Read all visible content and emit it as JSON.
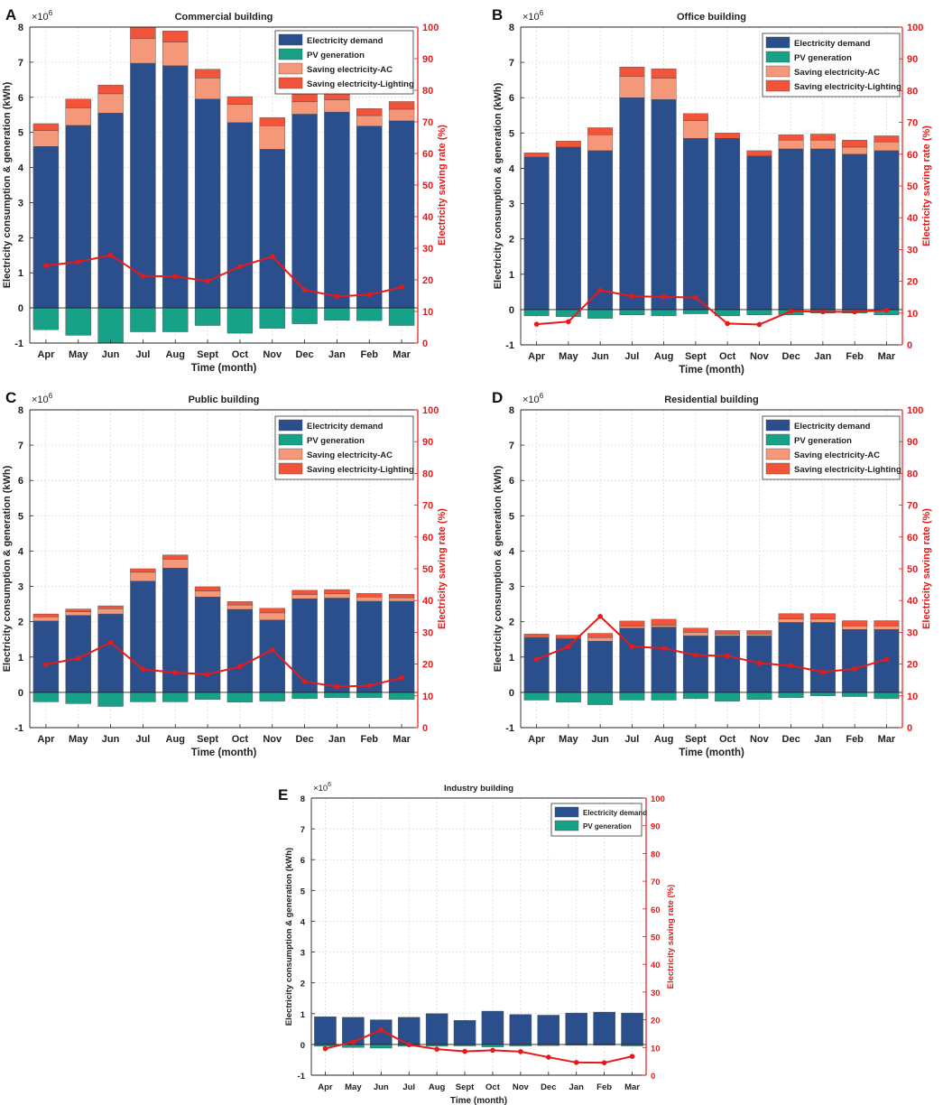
{
  "figure": {
    "months": [
      "Apr",
      "May",
      "Jun",
      "Jul",
      "Aug",
      "Sept",
      "Oct",
      "Nov",
      "Dec",
      "Jan",
      "Feb",
      "Mar"
    ],
    "xlabel": "Time (month)",
    "ylabel_left": "Electricity consumption & generation (kWh)",
    "ylabel_right": "Electricity saving rate (%)",
    "exponent_base": "×10",
    "exponent_power": "6",
    "colors": {
      "demand": "#2b4f8c",
      "pv": "#17a187",
      "ac": "#f5987a",
      "lighting": "#f2543a",
      "rate": "#e81919",
      "grid": "#d8d8d8"
    }
  },
  "chart_data": [
    {
      "panel": "A",
      "type": "bar",
      "title": "Commercial building",
      "ylim": [
        -1,
        8
      ],
      "y2lim": [
        0,
        100
      ],
      "legend": [
        "Electricity demand",
        "PV generation",
        "Saving electricity-AC",
        "Saving electricity-Lighting"
      ],
      "series": [
        {
          "name": "Electricity demand",
          "values": [
            4.6,
            5.2,
            5.55,
            6.97,
            6.9,
            5.95,
            5.28,
            4.52,
            5.52,
            5.58,
            5.18,
            5.33
          ]
        },
        {
          "name": "PV generation",
          "values": [
            -0.62,
            -0.78,
            -1.0,
            -0.68,
            -0.68,
            -0.5,
            -0.72,
            -0.58,
            -0.45,
            -0.35,
            -0.36,
            -0.5
          ]
        },
        {
          "name": "Saving electricity-AC",
          "values": [
            0.45,
            0.5,
            0.55,
            0.7,
            0.67,
            0.6,
            0.52,
            0.67,
            0.35,
            0.35,
            0.3,
            0.33
          ]
        },
        {
          "name": "Saving electricity-Lighting",
          "values": [
            0.2,
            0.25,
            0.25,
            0.33,
            0.32,
            0.25,
            0.22,
            0.23,
            0.22,
            0.22,
            0.2,
            0.22
          ]
        },
        {
          "name": "Electricity saving rate",
          "values": [
            24.5,
            25.7,
            27.8,
            21.2,
            21.1,
            19.6,
            24.2,
            27.4,
            16.8,
            14.8,
            15.3,
            17.7
          ]
        }
      ]
    },
    {
      "panel": "B",
      "type": "bar",
      "title": "Office building",
      "ylim": [
        -1,
        8
      ],
      "y2lim": [
        0,
        100
      ],
      "legend": [
        "Electricity demand",
        "PV generation",
        "Saving electricity-AC",
        "Saving electricity-Lighting"
      ],
      "series": [
        {
          "name": "Electricity demand",
          "values": [
            4.32,
            4.6,
            4.5,
            6.0,
            5.95,
            4.85,
            4.85,
            4.35,
            4.55,
            4.55,
            4.4,
            4.5
          ]
        },
        {
          "name": "PV generation",
          "values": [
            -0.18,
            -0.2,
            -0.25,
            -0.15,
            -0.18,
            -0.12,
            -0.18,
            -0.15,
            -0.15,
            -0.1,
            -0.1,
            -0.15
          ]
        },
        {
          "name": "Saving electricity-AC",
          "values": [
            0.0,
            0.0,
            0.45,
            0.6,
            0.6,
            0.5,
            0.0,
            0.0,
            0.25,
            0.25,
            0.2,
            0.25
          ]
        },
        {
          "name": "Saving electricity-Lighting",
          "values": [
            0.12,
            0.17,
            0.2,
            0.27,
            0.27,
            0.2,
            0.15,
            0.15,
            0.15,
            0.17,
            0.2,
            0.17
          ]
        },
        {
          "name": "Electricity saving rate",
          "values": [
            6.5,
            7.3,
            17.2,
            15.3,
            15.1,
            14.9,
            6.7,
            6.4,
            10.6,
            10.4,
            10.4,
            10.9
          ]
        }
      ]
    },
    {
      "panel": "C",
      "type": "bar",
      "title": "Public building",
      "ylim": [
        -1,
        8
      ],
      "y2lim": [
        0,
        100
      ],
      "legend": [
        "Electricity demand",
        "PV generation",
        "Saving electricity-AC",
        "Saving electricity-Lighting"
      ],
      "series": [
        {
          "name": "Electricity demand",
          "values": [
            2.02,
            2.18,
            2.22,
            3.15,
            3.52,
            2.7,
            2.35,
            2.05,
            2.65,
            2.67,
            2.58,
            2.58
          ]
        },
        {
          "name": "PV generation",
          "values": [
            -0.27,
            -0.32,
            -0.4,
            -0.27,
            -0.27,
            -0.2,
            -0.28,
            -0.25,
            -0.18,
            -0.15,
            -0.15,
            -0.2
          ]
        },
        {
          "name": "Saving electricity-AC",
          "values": [
            0.12,
            0.1,
            0.15,
            0.25,
            0.25,
            0.17,
            0.12,
            0.2,
            0.12,
            0.12,
            0.12,
            0.1
          ]
        },
        {
          "name": "Saving electricity-Lighting",
          "values": [
            0.08,
            0.08,
            0.08,
            0.1,
            0.12,
            0.12,
            0.1,
            0.13,
            0.12,
            0.12,
            0.1,
            0.1
          ]
        },
        {
          "name": "Electricity saving rate",
          "values": [
            19.9,
            21.8,
            26.8,
            18.4,
            17.3,
            16.8,
            19.2,
            24.5,
            14.5,
            12.9,
            13.2,
            15.7
          ]
        }
      ]
    },
    {
      "panel": "D",
      "type": "bar",
      "title": "Residential building",
      "ylim": [
        -1,
        8
      ],
      "y2lim": [
        0,
        100
      ],
      "legend": [
        "Electricity demand",
        "PV generation",
        "Saving electricity-AC",
        "Saving electricity-Lighting"
      ],
      "series": [
        {
          "name": "Electricity demand",
          "values": [
            1.55,
            1.52,
            1.45,
            1.82,
            1.85,
            1.6,
            1.6,
            1.6,
            1.98,
            1.98,
            1.78,
            1.78
          ]
        },
        {
          "name": "PV generation",
          "values": [
            -0.22,
            -0.28,
            -0.35,
            -0.22,
            -0.22,
            -0.18,
            -0.25,
            -0.2,
            -0.15,
            -0.1,
            -0.12,
            -0.18
          ]
        },
        {
          "name": "Saving electricity-AC",
          "values": [
            0.0,
            0.0,
            0.1,
            0.05,
            0.05,
            0.1,
            0.05,
            0.05,
            0.1,
            0.1,
            0.1,
            0.1
          ]
        },
        {
          "name": "Saving electricity-Lighting",
          "values": [
            0.1,
            0.1,
            0.12,
            0.15,
            0.17,
            0.12,
            0.1,
            0.1,
            0.15,
            0.15,
            0.15,
            0.15
          ]
        },
        {
          "name": "Electricity saving rate",
          "values": [
            21.5,
            25.5,
            35.0,
            25.5,
            25.0,
            22.8,
            22.6,
            20.3,
            19.5,
            17.5,
            18.5,
            21.5
          ]
        }
      ]
    },
    {
      "panel": "E",
      "type": "bar",
      "title": "Industry building",
      "ylim": [
        -1,
        8
      ],
      "y2lim": [
        0,
        100
      ],
      "legend": [
        "Electricity demand",
        "PV generation"
      ],
      "series": [
        {
          "name": "Electricity demand",
          "values": [
            0.9,
            0.88,
            0.8,
            0.88,
            1.0,
            0.78,
            1.08,
            0.97,
            0.95,
            1.02,
            1.05,
            1.02
          ]
        },
        {
          "name": "PV generation",
          "values": [
            -0.06,
            -0.1,
            -0.12,
            -0.06,
            -0.06,
            -0.05,
            -0.08,
            -0.05,
            -0.04,
            -0.03,
            -0.03,
            -0.05
          ]
        },
        {
          "name": "Electricity saving rate",
          "values": [
            9.6,
            12.0,
            16.3,
            11.0,
            9.4,
            8.6,
            9.0,
            8.5,
            6.5,
            4.6,
            4.5,
            6.8
          ]
        }
      ]
    }
  ]
}
